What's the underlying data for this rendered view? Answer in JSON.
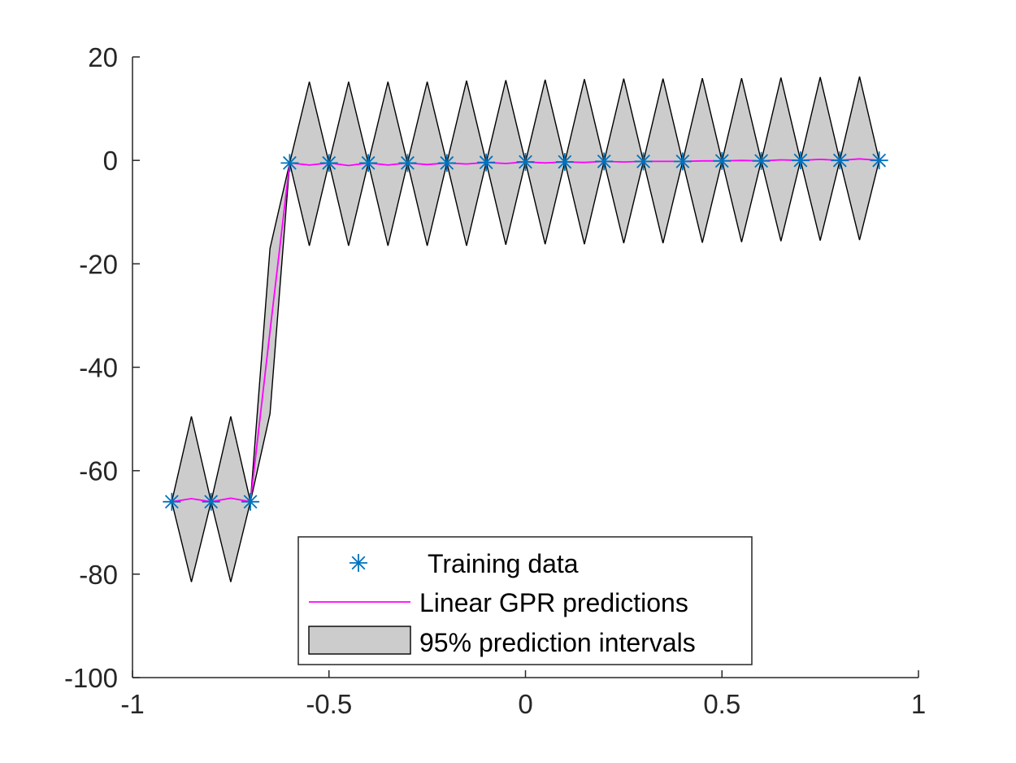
{
  "chart_data": {
    "type": "line",
    "title": "",
    "xlabel": "",
    "ylabel": "",
    "xlim": [
      -1,
      1
    ],
    "ylim": [
      -100,
      20
    ],
    "x_ticks": [
      -1,
      -0.5,
      0,
      0.5,
      1
    ],
    "x_tick_labels": [
      "-1",
      "-0.5",
      "0",
      "0.5",
      "1"
    ],
    "y_ticks": [
      20,
      0,
      -20,
      -40,
      -60,
      -80,
      -100
    ],
    "y_tick_labels": [
      "20",
      "0",
      "-20",
      "-40",
      "-60",
      "-80",
      "-100"
    ],
    "grid": false,
    "legend_position": "bottom-center",
    "colors": {
      "training": "#0072BD",
      "prediction": "#FF00FF",
      "interval_fill": "#CCCCCC",
      "interval_edge": "#000000",
      "axis": "#262626"
    },
    "series": [
      {
        "name": "Training data",
        "kind": "marker",
        "x": [
          -0.9,
          -0.8,
          -0.7,
          -0.6,
          -0.5,
          -0.4,
          -0.3,
          -0.2,
          -0.1,
          0,
          0.1,
          0.2,
          0.3,
          0.4,
          0.5,
          0.6,
          0.7,
          0.8,
          0.9
        ],
        "y": [
          -66,
          -66,
          -66,
          -0.5,
          -0.5,
          -0.5,
          -0.5,
          -0.5,
          -0.4,
          -0.3,
          -0.3,
          -0.2,
          -0.2,
          -0.2,
          -0.1,
          -0.1,
          0,
          0,
          0
        ]
      },
      {
        "name": "Linear GPR predictions",
        "kind": "line",
        "x": [
          -0.9,
          -0.85,
          -0.8,
          -0.75,
          -0.7,
          -0.65,
          -0.6,
          -0.55,
          -0.5,
          -0.45,
          -0.4,
          -0.35,
          -0.3,
          -0.25,
          -0.2,
          -0.15,
          -0.1,
          -0.05,
          0,
          0.05,
          0.1,
          0.15,
          0.2,
          0.25,
          0.3,
          0.35,
          0.4,
          0.45,
          0.5,
          0.55,
          0.6,
          0.65,
          0.7,
          0.75,
          0.8,
          0.85,
          0.9
        ],
        "y": [
          -66,
          -65.4,
          -66,
          -65.3,
          -66,
          -33,
          -0.5,
          -0.9,
          -0.5,
          -1,
          -0.5,
          -0.9,
          -0.5,
          -0.8,
          -0.5,
          -0.7,
          -0.4,
          -0.6,
          -0.3,
          -0.5,
          -0.3,
          -0.4,
          -0.2,
          -0.3,
          -0.2,
          -0.2,
          -0.2,
          -0.1,
          -0.1,
          0,
          -0.1,
          0.1,
          0,
          0.2,
          0,
          0.3,
          0
        ]
      },
      {
        "name": "95% prediction intervals",
        "kind": "band",
        "x": [
          -0.9,
          -0.85,
          -0.8,
          -0.75,
          -0.7,
          -0.65,
          -0.6,
          -0.55,
          -0.5,
          -0.45,
          -0.4,
          -0.35,
          -0.3,
          -0.25,
          -0.2,
          -0.15,
          -0.1,
          -0.05,
          0,
          0.05,
          0.1,
          0.15,
          0.2,
          0.25,
          0.3,
          0.35,
          0.4,
          0.45,
          0.5,
          0.55,
          0.6,
          0.65,
          0.7,
          0.75,
          0.8,
          0.85,
          0.9
        ],
        "lower": [
          -66,
          -81.5,
          -66,
          -81.5,
          -66,
          -49,
          -0.5,
          -16.5,
          -0.5,
          -16.5,
          -0.5,
          -16.5,
          -0.5,
          -16.5,
          -0.5,
          -16.5,
          -0.4,
          -16.3,
          -0.3,
          -16.2,
          -0.3,
          -16.2,
          -0.2,
          -16,
          -0.2,
          -16,
          -0.2,
          -15.9,
          -0.1,
          -15.8,
          -0.1,
          -15.6,
          0,
          -15.5,
          0,
          -15.4,
          0
        ],
        "upper": [
          -66,
          -49.5,
          -66,
          -49.5,
          -66,
          -17,
          -0.5,
          15.2,
          -0.5,
          15.2,
          -0.5,
          15.2,
          -0.5,
          15.2,
          -0.5,
          15.4,
          -0.4,
          15.5,
          -0.3,
          15.6,
          -0.3,
          15.7,
          -0.2,
          15.8,
          -0.2,
          15.8,
          -0.2,
          15.9,
          -0.1,
          15.9,
          -0.1,
          16,
          0,
          16.1,
          0,
          16.2,
          0
        ]
      }
    ],
    "legend": {
      "entries": [
        "Training data",
        "Linear GPR predictions",
        "95% prediction intervals"
      ]
    }
  }
}
